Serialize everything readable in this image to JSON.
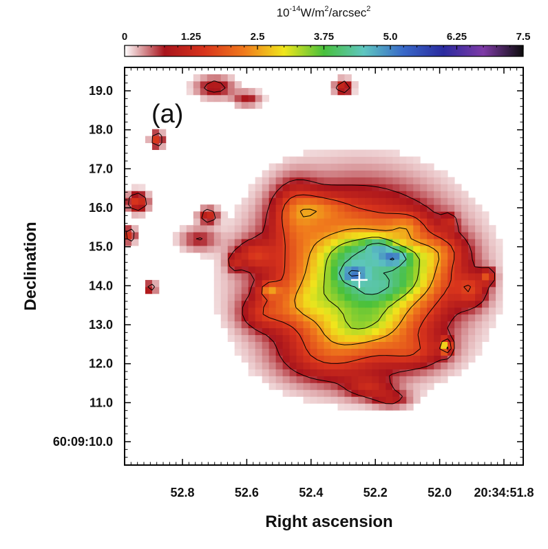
{
  "chart_data": {
    "type": "heatmap",
    "panel_label": "(a)",
    "xlabel": "Right ascension",
    "ylabel": "Declination",
    "colorbar": {
      "unit_prefix": "10",
      "unit_exp": "-14",
      "unit_main": "W/m",
      "unit_m_exp": "2",
      "unit_slash": "/arcsec",
      "unit_arc_exp": "2",
      "range": [
        0,
        7.5
      ],
      "tick_labels": [
        "0",
        "1.25",
        "2.5",
        "3.75",
        "5.0",
        "6.25",
        "7.5"
      ],
      "tick_values": [
        0,
        1.25,
        2.5,
        3.75,
        5.0,
        6.25,
        7.5
      ],
      "colors": [
        "#ffffff",
        "#a8141c",
        "#d8341c",
        "#f07a1c",
        "#f0e61c",
        "#48c03c",
        "#5ec6c0",
        "#3868c8",
        "#2a2a9e",
        "#7e3aa6",
        "#0c0c0c"
      ]
    },
    "x_axis": {
      "tick_labels": [
        "52.8",
        "52.6",
        "52.4",
        "52.2",
        "52.0",
        "20:34:51.8"
      ],
      "tick_values": [
        52.8,
        52.6,
        52.4,
        52.2,
        52.0,
        51.8
      ],
      "range": [
        52.98,
        51.74
      ]
    },
    "y_axis": {
      "tick_labels": [
        "60:09:10.0",
        "11.0",
        "12.0",
        "13.0",
        "14.0",
        "15.0",
        "16.0",
        "17.0",
        "18.0",
        "19.0"
      ],
      "tick_values": [
        10.0,
        11.0,
        12.0,
        13.0,
        14.0,
        15.0,
        16.0,
        17.0,
        18.0,
        19.0
      ],
      "range": [
        9.4,
        19.6
      ]
    },
    "marker": {
      "type": "cross",
      "ra": 52.25,
      "dec": 14.15
    },
    "components": [
      {
        "ra": 52.25,
        "dec": 14.25,
        "sx": 0.17,
        "sy": 1.25,
        "amp": 3.9
      },
      {
        "ra": 52.24,
        "dec": 14.8,
        "sx": 0.07,
        "sy": 0.28,
        "amp": 0.7
      },
      {
        "ra": 52.2,
        "dec": 13.0,
        "sx": 0.09,
        "sy": 0.38,
        "amp": 0.8
      },
      {
        "ra": 52.3,
        "dec": 12.8,
        "sx": 0.07,
        "sy": 0.28,
        "amp": 0.4
      },
      {
        "ra": 52.14,
        "dec": 14.75,
        "sx": 0.035,
        "sy": 0.17,
        "amp": 1.5
      },
      {
        "ra": 52.19,
        "dec": 15.05,
        "sx": 0.03,
        "sy": 0.13,
        "amp": 1.0
      },
      {
        "ra": 52.27,
        "dec": 14.3,
        "sx": 0.03,
        "sy": 0.15,
        "amp": 1.2
      },
      {
        "ra": 52.15,
        "dec": 14.05,
        "sx": 0.05,
        "sy": 0.3,
        "amp": 0.5
      },
      {
        "ra": 52.22,
        "dec": 13.85,
        "sx": 0.05,
        "sy": 0.2,
        "amp": 0.4
      },
      {
        "ra": 52.45,
        "dec": 15.9,
        "sx": 0.05,
        "sy": 0.55,
        "amp": 1.2
      },
      {
        "ra": 52.37,
        "dec": 16.0,
        "sx": 0.06,
        "sy": 0.25,
        "amp": 0.9
      },
      {
        "ra": 52.05,
        "dec": 14.3,
        "sx": 0.07,
        "sy": 0.55,
        "amp": 1.0
      },
      {
        "ra": 52.0,
        "dec": 14.9,
        "sx": 0.06,
        "sy": 0.3,
        "amp": 0.8
      },
      {
        "ra": 52.35,
        "dec": 12.2,
        "sx": 0.1,
        "sy": 0.45,
        "amp": 1.0
      },
      {
        "ra": 52.08,
        "dec": 12.3,
        "sx": 0.07,
        "sy": 0.3,
        "amp": 0.9
      },
      {
        "ra": 51.98,
        "dec": 12.45,
        "sx": 0.012,
        "sy": 0.13,
        "amp": 2.4
      },
      {
        "ra": 52.53,
        "dec": 13.9,
        "sx": 0.022,
        "sy": 0.13,
        "amp": 1.3
      },
      {
        "ra": 52.55,
        "dec": 13.3,
        "sx": 0.05,
        "sy": 0.3,
        "amp": 0.9
      },
      {
        "ra": 52.58,
        "dec": 14.8,
        "sx": 0.04,
        "sy": 0.25,
        "amp": 1.0
      },
      {
        "ra": 52.43,
        "dec": 13.5,
        "sx": 0.06,
        "sy": 0.4,
        "amp": 0.8
      },
      {
        "ra": 52.94,
        "dec": 16.15,
        "sx": 0.022,
        "sy": 0.17,
        "amp": 1.6
      },
      {
        "ra": 52.965,
        "dec": 15.3,
        "sx": 0.012,
        "sy": 0.13,
        "amp": 1.5
      },
      {
        "ra": 52.88,
        "dec": 17.75,
        "sx": 0.013,
        "sy": 0.13,
        "amp": 1.6
      },
      {
        "ra": 52.72,
        "dec": 15.8,
        "sx": 0.02,
        "sy": 0.13,
        "amp": 1.3
      },
      {
        "ra": 52.3,
        "dec": 19.1,
        "sx": 0.018,
        "sy": 0.13,
        "amp": 1.4
      },
      {
        "ra": 51.9,
        "dec": 13.9,
        "sx": 0.035,
        "sy": 0.3,
        "amp": 1.1
      },
      {
        "ra": 51.85,
        "dec": 14.25,
        "sx": 0.015,
        "sy": 0.13,
        "amp": 1.4
      },
      {
        "ra": 52.9,
        "dec": 13.95,
        "sx": 0.012,
        "sy": 0.1,
        "amp": 1.2
      },
      {
        "ra": 52.7,
        "dec": 19.1,
        "sx": 0.04,
        "sy": 0.18,
        "amp": 1.0
      },
      {
        "ra": 52.6,
        "dec": 18.8,
        "sx": 0.03,
        "sy": 0.13,
        "amp": 0.8
      },
      {
        "ra": 52.22,
        "dec": 11.4,
        "sx": 0.05,
        "sy": 0.2,
        "amp": 0.9
      },
      {
        "ra": 52.15,
        "dec": 11.1,
        "sx": 0.04,
        "sy": 0.15,
        "amp": 0.8
      },
      {
        "ra": 52.75,
        "dec": 15.2,
        "sx": 0.04,
        "sy": 0.2,
        "amp": 0.7
      },
      {
        "ra": 52.1,
        "dec": 15.55,
        "sx": 0.04,
        "sy": 0.22,
        "amp": 0.8
      },
      {
        "ra": 51.97,
        "dec": 15.65,
        "sx": 0.015,
        "sy": 0.15,
        "amp": 0.7
      },
      {
        "ra": 52.64,
        "dec": 14.6,
        "sx": 0.015,
        "sy": 0.15,
        "amp": 0.8
      }
    ],
    "contour_levels": [
      0.7,
      1.6,
      2.5,
      3.3,
      4.2,
      5.0
    ]
  }
}
